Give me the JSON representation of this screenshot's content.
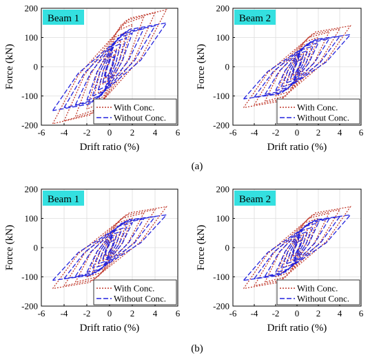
{
  "figure": {
    "label_a": "(a)",
    "label_b": "(b)"
  },
  "legend_labels": [
    "With Conc.",
    "Without Conc."
  ],
  "series_colors": {
    "with_conc": "#c0392b",
    "without_conc": "#2222dd"
  },
  "panel_title_bg": "#34e0e0",
  "chart_data": [
    {
      "type": "line",
      "title": "Beam 1",
      "xlabel": "Drift ratio (%)",
      "ylabel": "Force (kN)",
      "xlim": [
        -6,
        6
      ],
      "ylim": [
        -200,
        200
      ],
      "xticks": [
        -6,
        -4,
        -2,
        0,
        2,
        4,
        6
      ],
      "yticks": [
        -200,
        -100,
        0,
        100,
        200
      ],
      "grid": true,
      "legend_position": "bottom-right",
      "drift_amplitudes": [
        0.4,
        0.6,
        1,
        1.5,
        2,
        3,
        4,
        5
      ],
      "series": [
        {
          "name": "With Conc.",
          "style": "dotted",
          "peak_force_positive": [
            40,
            60,
            90,
            120,
            145,
            170,
            185,
            195
          ],
          "peak_force_negative": [
            -40,
            -60,
            -90,
            -120,
            -145,
            -170,
            -185,
            -195
          ]
        },
        {
          "name": "Without Conc.",
          "style": "dashed",
          "peak_force_positive": [
            35,
            55,
            80,
            100,
            115,
            130,
            140,
            150
          ],
          "peak_force_negative": [
            -35,
            -55,
            -80,
            -100,
            -115,
            -130,
            -140,
            -150
          ]
        }
      ]
    },
    {
      "type": "line",
      "title": "Beam 2",
      "xlabel": "Drift ratio (%)",
      "ylabel": "Force (kN)",
      "xlim": [
        -6,
        6
      ],
      "ylim": [
        -200,
        200
      ],
      "xticks": [
        -6,
        -4,
        -2,
        0,
        2,
        4,
        6
      ],
      "yticks": [
        -200,
        -100,
        0,
        100,
        200
      ],
      "grid": true,
      "legend_position": "bottom-right",
      "drift_amplitudes": [
        0.4,
        0.6,
        1,
        1.5,
        2,
        3,
        4,
        5
      ],
      "series": [
        {
          "name": "With Conc.",
          "style": "dotted",
          "peak_force_positive": [
            30,
            45,
            65,
            85,
            100,
            118,
            130,
            140
          ],
          "peak_force_negative": [
            -30,
            -45,
            -65,
            -85,
            -100,
            -118,
            -130,
            -140
          ]
        },
        {
          "name": "Without Conc.",
          "style": "dashed",
          "peak_force_positive": [
            25,
            40,
            55,
            70,
            82,
            95,
            104,
            110
          ],
          "peak_force_negative": [
            -25,
            -40,
            -55,
            -70,
            -82,
            -95,
            -104,
            -110
          ]
        }
      ]
    },
    {
      "type": "line",
      "title": "Beam 1",
      "xlabel": "Drift ratio (%)",
      "ylabel": "Force (kN)",
      "xlim": [
        -6,
        6
      ],
      "ylim": [
        -200,
        200
      ],
      "xticks": [
        -6,
        -4,
        -2,
        0,
        2,
        4,
        6
      ],
      "yticks": [
        -200,
        -100,
        0,
        100,
        200
      ],
      "grid": true,
      "legend_position": "bottom-right",
      "drift_amplitudes": [
        0.4,
        0.6,
        1,
        1.5,
        2,
        3,
        4,
        5
      ],
      "series": [
        {
          "name": "With Conc.",
          "style": "dotted",
          "peak_force_positive": [
            30,
            45,
            65,
            85,
            100,
            118,
            130,
            140
          ],
          "peak_force_negative": [
            -30,
            -45,
            -65,
            -85,
            -100,
            -118,
            -130,
            -140
          ]
        },
        {
          "name": "Without Conc.",
          "style": "dashed",
          "peak_force_positive": [
            25,
            40,
            55,
            70,
            85,
            98,
            106,
            112
          ],
          "peak_force_negative": [
            -25,
            -40,
            -55,
            -70,
            -85,
            -98,
            -106,
            -112
          ]
        }
      ]
    },
    {
      "type": "line",
      "title": "Beam 2",
      "xlabel": "Drift ratio (%)",
      "ylabel": "Force (kN)",
      "xlim": [
        -6,
        6
      ],
      "ylim": [
        -200,
        200
      ],
      "xticks": [
        -6,
        -4,
        -2,
        0,
        2,
        4,
        6
      ],
      "yticks": [
        -200,
        -100,
        0,
        100,
        200
      ],
      "grid": true,
      "legend_position": "bottom-right",
      "drift_amplitudes": [
        0.4,
        0.6,
        1,
        1.5,
        2,
        3,
        4,
        5
      ],
      "series": [
        {
          "name": "With Conc.",
          "style": "dotted",
          "peak_force_positive": [
            30,
            45,
            65,
            85,
            100,
            118,
            130,
            140
          ],
          "peak_force_negative": [
            -30,
            -45,
            -65,
            -85,
            -100,
            -118,
            -130,
            -140
          ]
        },
        {
          "name": "Without Conc.",
          "style": "dashed",
          "peak_force_positive": [
            25,
            40,
            55,
            70,
            85,
            98,
            106,
            112
          ],
          "peak_force_negative": [
            -25,
            -40,
            -55,
            -70,
            -85,
            -98,
            -106,
            -112
          ]
        }
      ]
    }
  ]
}
